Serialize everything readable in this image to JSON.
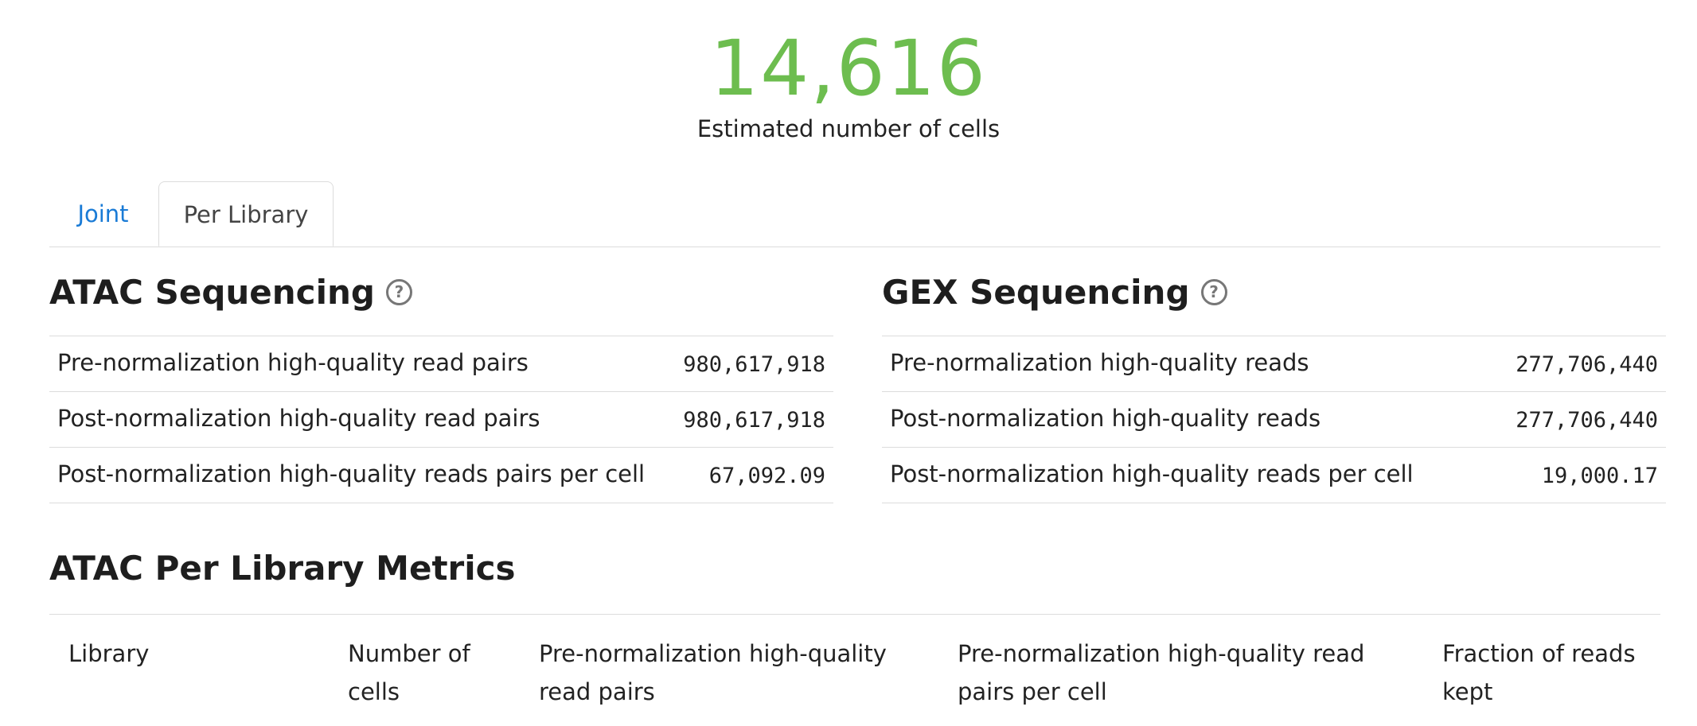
{
  "hero": {
    "value": "14,616",
    "label": "Estimated number of cells"
  },
  "tabs": [
    {
      "label": "Joint",
      "active": false
    },
    {
      "label": "Per Library",
      "active": true
    }
  ],
  "atac": {
    "title": "ATAC Sequencing",
    "help_icon": "question-circle-icon",
    "rows": [
      {
        "label": "Pre-normalization high-quality read pairs",
        "value": "980,617,918"
      },
      {
        "label": "Post-normalization high-quality read pairs",
        "value": "980,617,918"
      },
      {
        "label": "Post-normalization high-quality reads pairs per cell",
        "value": "67,092.09"
      }
    ]
  },
  "gex": {
    "title": "GEX Sequencing",
    "help_icon": "question-circle-icon",
    "rows": [
      {
        "label": "Pre-normalization high-quality reads",
        "value": "277,706,440"
      },
      {
        "label": "Post-normalization high-quality reads",
        "value": "277,706,440"
      },
      {
        "label": "Post-normalization high-quality reads per cell",
        "value": "19,000.17"
      }
    ]
  },
  "per_library": {
    "title": "ATAC Per Library Metrics",
    "columns": [
      "Library",
      "Number of cells",
      "Pre-normalization high-quality read pairs",
      "Pre-normalization high-quality read pairs per cell",
      "Fraction of reads kept"
    ]
  },
  "colors": {
    "hero": "#6dbd4f",
    "link": "#1a7bd6",
    "border": "#dcdcdc"
  }
}
